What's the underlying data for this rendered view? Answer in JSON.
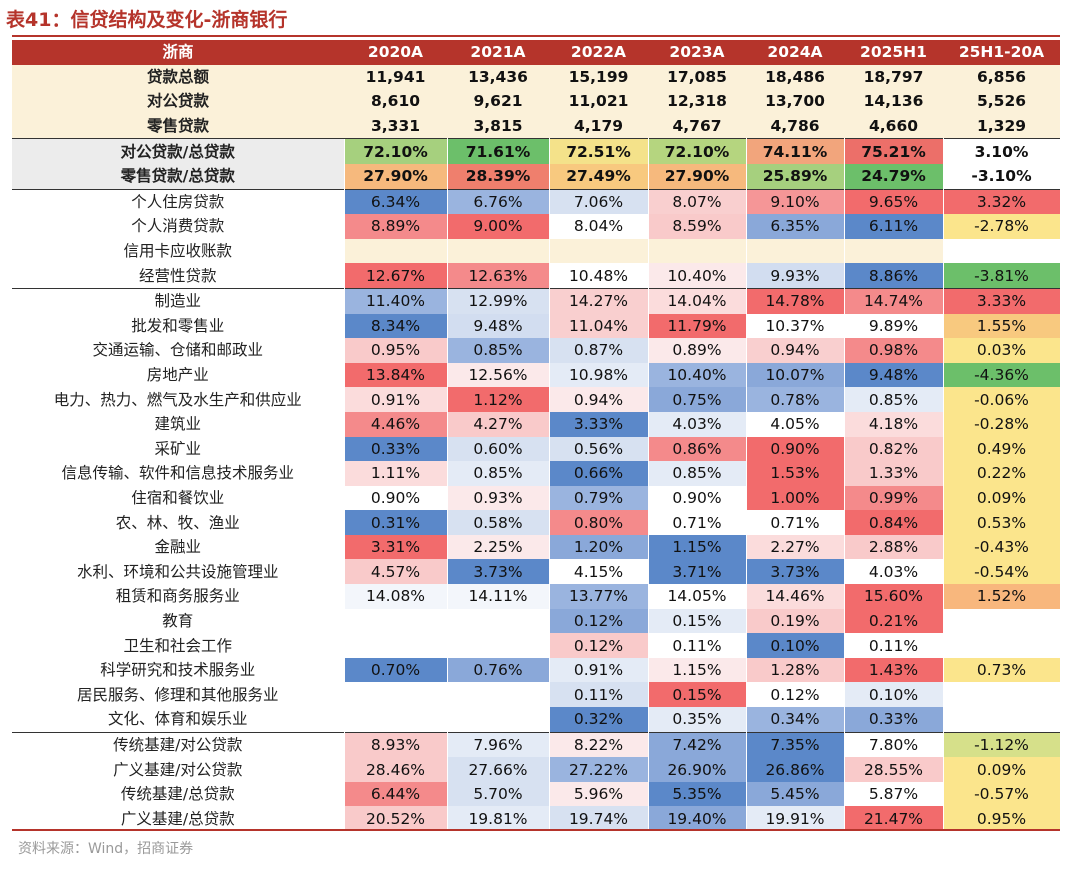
{
  "title": "表41：信贷结构及变化-浙商银行",
  "source": "资料来源：Wind，招商证券",
  "header": [
    "浙商",
    "2020A",
    "2021A",
    "2022A",
    "2023A",
    "2024A",
    "2025H1",
    "25H1-20A"
  ],
  "rows": [
    {
      "label": "贷款总额",
      "type": "sum",
      "values": [
        "11,941",
        "13,436",
        "15,199",
        "17,085",
        "18,486",
        "18,797",
        "6,856"
      ],
      "colors": [
        "",
        "",
        "",
        "",
        "",
        "",
        ""
      ]
    },
    {
      "label": "对公贷款",
      "type": "sum",
      "values": [
        "8,610",
        "9,621",
        "11,021",
        "12,318",
        "13,700",
        "14,136",
        "5,526"
      ],
      "colors": [
        "",
        "",
        "",
        "",
        "",
        "",
        ""
      ]
    },
    {
      "label": "零售贷款",
      "type": "sum",
      "values": [
        "3,331",
        "3,815",
        "4,179",
        "4,767",
        "4,786",
        "4,660",
        "1,329"
      ],
      "colors": [
        "",
        "",
        "",
        "",
        "",
        "",
        ""
      ]
    },
    {
      "label": "对公贷款/总贷款",
      "type": "ratio",
      "sep": true,
      "values": [
        "72.10%",
        "71.61%",
        "72.51%",
        "72.10%",
        "74.11%",
        "75.21%",
        "3.10%"
      ],
      "colors": [
        "#a6d07e",
        "#6cbf6a",
        "#f4e28a",
        "#b5d57f",
        "#f2a57c",
        "#ec6f69",
        "#ffffff"
      ]
    },
    {
      "label": "零售贷款/总贷款",
      "type": "ratio",
      "values": [
        "27.90%",
        "28.39%",
        "27.49%",
        "27.90%",
        "25.89%",
        "24.79%",
        "-3.10%"
      ],
      "colors": [
        "#f6b97d",
        "#ef7f6d",
        "#f8c97f",
        "#f6b97d",
        "#a6d07e",
        "#6cbf6a",
        "#ffffff"
      ]
    },
    {
      "label": "个人住房贷款",
      "sep": true,
      "values": [
        "6.34%",
        "6.76%",
        "7.06%",
        "8.07%",
        "9.10%",
        "9.65%",
        "3.32%"
      ],
      "colors": [
        "#5b88c9",
        "#9ab4df",
        "#d7e1f1",
        "#f9cfcf",
        "#f59697",
        "#f26b6c",
        "#f26b6c"
      ]
    },
    {
      "label": "个人消费贷款",
      "values": [
        "8.89%",
        "9.00%",
        "8.04%",
        "8.59%",
        "6.35%",
        "6.11%",
        "-2.78%"
      ],
      "colors": [
        "#f48a8b",
        "#f26b6c",
        "#ffffff",
        "#f9caca",
        "#8aa8d9",
        "#5b88c9",
        "#fbe58c"
      ]
    },
    {
      "label": "信用卡应收账款",
      "values": [
        "",
        "",
        "",
        "",
        "",
        "",
        ""
      ],
      "colors": [
        "#fbf1d9",
        "#fbf1d9",
        "#fbf1d9",
        "#fbf1d9",
        "#fbf1d9",
        "#fbf1d9",
        "#ffffff"
      ]
    },
    {
      "label": "经营性贷款",
      "values": [
        "12.67%",
        "12.63%",
        "10.48%",
        "10.40%",
        "9.93%",
        "8.86%",
        "-3.81%"
      ],
      "colors": [
        "#f26b6c",
        "#f48a8b",
        "#ffffff",
        "#fbe9ea",
        "#d2ddf0",
        "#5b88c9",
        "#6cbf6a"
      ]
    },
    {
      "label": "制造业",
      "sep": true,
      "values": [
        "11.40%",
        "12.99%",
        "14.27%",
        "14.04%",
        "14.78%",
        "14.74%",
        "3.33%"
      ],
      "colors": [
        "#9ab4df",
        "#d7e1f1",
        "#f9cfcf",
        "#fbdcdc",
        "#f26b6c",
        "#f48a8b",
        "#f26b6c"
      ]
    },
    {
      "label": "批发和零售业",
      "values": [
        "8.34%",
        "9.48%",
        "11.04%",
        "11.79%",
        "10.37%",
        "9.89%",
        "1.55%"
      ],
      "colors": [
        "#5b88c9",
        "#d2ddf0",
        "#f9cfcf",
        "#f26b6c",
        "#ffffff",
        "#ffffff",
        "#f8c97f"
      ]
    },
    {
      "label": "交通运输、仓储和邮政业",
      "values": [
        "0.95%",
        "0.85%",
        "0.87%",
        "0.89%",
        "0.94%",
        "0.98%",
        "0.03%"
      ],
      "colors": [
        "#f9caca",
        "#9ab4df",
        "#d7e1f1",
        "#fbe9ea",
        "#f9cfcf",
        "#f48a8b",
        "#fbe58c"
      ]
    },
    {
      "label": "房地产业",
      "values": [
        "13.84%",
        "12.56%",
        "10.98%",
        "10.40%",
        "10.07%",
        "9.48%",
        "-4.36%"
      ],
      "colors": [
        "#f26b6c",
        "#fbe9ea",
        "#e4ebf6",
        "#9ab4df",
        "#8aa8d9",
        "#5b88c9",
        "#6cbf6a"
      ]
    },
    {
      "label": "电力、热力、燃气及水生产和供应业",
      "values": [
        "0.91%",
        "1.12%",
        "0.94%",
        "0.75%",
        "0.78%",
        "0.85%",
        "-0.06%"
      ],
      "colors": [
        "#fbdcdc",
        "#f26b6c",
        "#fbe9ea",
        "#8aa8d9",
        "#9ab4df",
        "#e4ebf6",
        "#fbe58c"
      ]
    },
    {
      "label": "建筑业",
      "values": [
        "4.46%",
        "4.27%",
        "3.33%",
        "4.03%",
        "4.05%",
        "4.18%",
        "-0.28%"
      ],
      "colors": [
        "#f48a8b",
        "#f9caca",
        "#5b88c9",
        "#e4ebf6",
        "#ffffff",
        "#fbdcdc",
        "#fbe58c"
      ]
    },
    {
      "label": "采矿业",
      "values": [
        "0.33%",
        "0.60%",
        "0.56%",
        "0.86%",
        "0.90%",
        "0.82%",
        "0.49%"
      ],
      "colors": [
        "#5b88c9",
        "#d7e1f1",
        "#d7e1f1",
        "#f48a8b",
        "#f26b6c",
        "#f9caca",
        "#fbe58c"
      ]
    },
    {
      "label": "信息传输、软件和信息技术服务业",
      "values": [
        "1.11%",
        "0.85%",
        "0.66%",
        "0.85%",
        "1.53%",
        "1.33%",
        "0.22%"
      ],
      "colors": [
        "#fbdcdc",
        "#e4ebf6",
        "#5b88c9",
        "#e4ebf6",
        "#f26b6c",
        "#f9caca",
        "#fbe58c"
      ]
    },
    {
      "label": "住宿和餐饮业",
      "values": [
        "0.90%",
        "0.93%",
        "0.79%",
        "0.90%",
        "1.00%",
        "0.99%",
        "0.09%"
      ],
      "colors": [
        "#ffffff",
        "#fbe9ea",
        "#9ab4df",
        "#ffffff",
        "#f26b6c",
        "#f48a8b",
        "#fbe58c"
      ]
    },
    {
      "label": "农、林、牧、渔业",
      "values": [
        "0.31%",
        "0.58%",
        "0.80%",
        "0.71%",
        "0.71%",
        "0.84%",
        "0.53%"
      ],
      "colors": [
        "#5b88c9",
        "#d7e1f1",
        "#f48a8b",
        "#ffffff",
        "#ffffff",
        "#f26b6c",
        "#fbe58c"
      ]
    },
    {
      "label": "金融业",
      "values": [
        "3.31%",
        "2.25%",
        "1.20%",
        "1.15%",
        "2.27%",
        "2.88%",
        "-0.43%"
      ],
      "colors": [
        "#f26b6c",
        "#fbe9ea",
        "#8aa8d9",
        "#5b88c9",
        "#fbdcdc",
        "#f9caca",
        "#fbe58c"
      ]
    },
    {
      "label": "水利、环境和公共设施管理业",
      "values": [
        "4.57%",
        "3.73%",
        "4.15%",
        "3.71%",
        "3.73%",
        "4.03%",
        "-0.54%"
      ],
      "colors": [
        "#f9caca",
        "#5b88c9",
        "#ffffff",
        "#5b88c9",
        "#5b88c9",
        "#ffffff",
        "#fbe58c"
      ]
    },
    {
      "label": "租赁和商务服务业",
      "values": [
        "14.08%",
        "14.11%",
        "13.77%",
        "14.05%",
        "14.46%",
        "15.60%",
        "1.52%"
      ],
      "colors": [
        "#f3f6fb",
        "#f3f6fb",
        "#9ab4df",
        "#ffffff",
        "#fbdcdc",
        "#f26b6c",
        "#f8b77d"
      ]
    },
    {
      "label": "教育",
      "values": [
        "",
        "",
        "0.12%",
        "0.15%",
        "0.19%",
        "0.21%",
        ""
      ],
      "colors": [
        "#ffffff",
        "#ffffff",
        "#8aa8d9",
        "#e4ebf6",
        "#f9caca",
        "#f26b6c",
        "#ffffff"
      ]
    },
    {
      "label": "卫生和社会工作",
      "values": [
        "",
        "",
        "0.12%",
        "0.11%",
        "0.10%",
        "0.11%",
        ""
      ],
      "colors": [
        "#ffffff",
        "#ffffff",
        "#f9caca",
        "#ffffff",
        "#5b88c9",
        "#ffffff",
        "#ffffff"
      ]
    },
    {
      "label": "科学研究和技术服务业",
      "values": [
        "0.70%",
        "0.76%",
        "0.91%",
        "1.15%",
        "1.28%",
        "1.43%",
        "0.73%"
      ],
      "colors": [
        "#5b88c9",
        "#8aa8d9",
        "#e4ebf6",
        "#fbe9ea",
        "#f9caca",
        "#f26b6c",
        "#fbe58c"
      ]
    },
    {
      "label": "居民服务、修理和其他服务业",
      "values": [
        "",
        "",
        "0.11%",
        "0.15%",
        "0.12%",
        "0.10%",
        ""
      ],
      "colors": [
        "#ffffff",
        "#ffffff",
        "#d7e1f1",
        "#f26b6c",
        "#ffffff",
        "#e4ebf6",
        "#ffffff"
      ]
    },
    {
      "label": "文化、体育和娱乐业",
      "values": [
        "",
        "",
        "0.32%",
        "0.35%",
        "0.34%",
        "0.33%",
        ""
      ],
      "colors": [
        "#ffffff",
        "#ffffff",
        "#5b88c9",
        "#e4ebf6",
        "#9ab4df",
        "#8aa8d9",
        "#ffffff"
      ]
    },
    {
      "label": "传统基建/对公贷款",
      "sep": true,
      "values": [
        "8.93%",
        "7.96%",
        "8.22%",
        "7.42%",
        "7.35%",
        "7.80%",
        "-1.12%"
      ],
      "colors": [
        "#f9caca",
        "#e4ebf6",
        "#fbe9ea",
        "#8aa8d9",
        "#5b88c9",
        "#ffffff",
        "#d6e08a"
      ]
    },
    {
      "label": "广义基建/对公贷款",
      "values": [
        "28.46%",
        "27.66%",
        "27.22%",
        "26.90%",
        "26.86%",
        "28.55%",
        "0.09%"
      ],
      "colors": [
        "#f9caca",
        "#d7e1f1",
        "#9ab4df",
        "#8aa8d9",
        "#5b88c9",
        "#f9caca",
        "#fbe58c"
      ]
    },
    {
      "label": "传统基建/总贷款",
      "values": [
        "6.44%",
        "5.70%",
        "5.96%",
        "5.35%",
        "5.45%",
        "5.87%",
        "-0.57%"
      ],
      "colors": [
        "#f48a8b",
        "#d7e1f1",
        "#fbe9ea",
        "#5b88c9",
        "#8aa8d9",
        "#ffffff",
        "#fbe58c"
      ]
    },
    {
      "label": "广义基建/总贷款",
      "values": [
        "20.52%",
        "19.81%",
        "19.74%",
        "19.40%",
        "19.91%",
        "21.47%",
        "0.95%"
      ],
      "colors": [
        "#f9caca",
        "#e4ebf6",
        "#d7e1f1",
        "#8aa8d9",
        "#e4ebf6",
        "#f26b6c",
        "#fbe58c"
      ]
    }
  ]
}
